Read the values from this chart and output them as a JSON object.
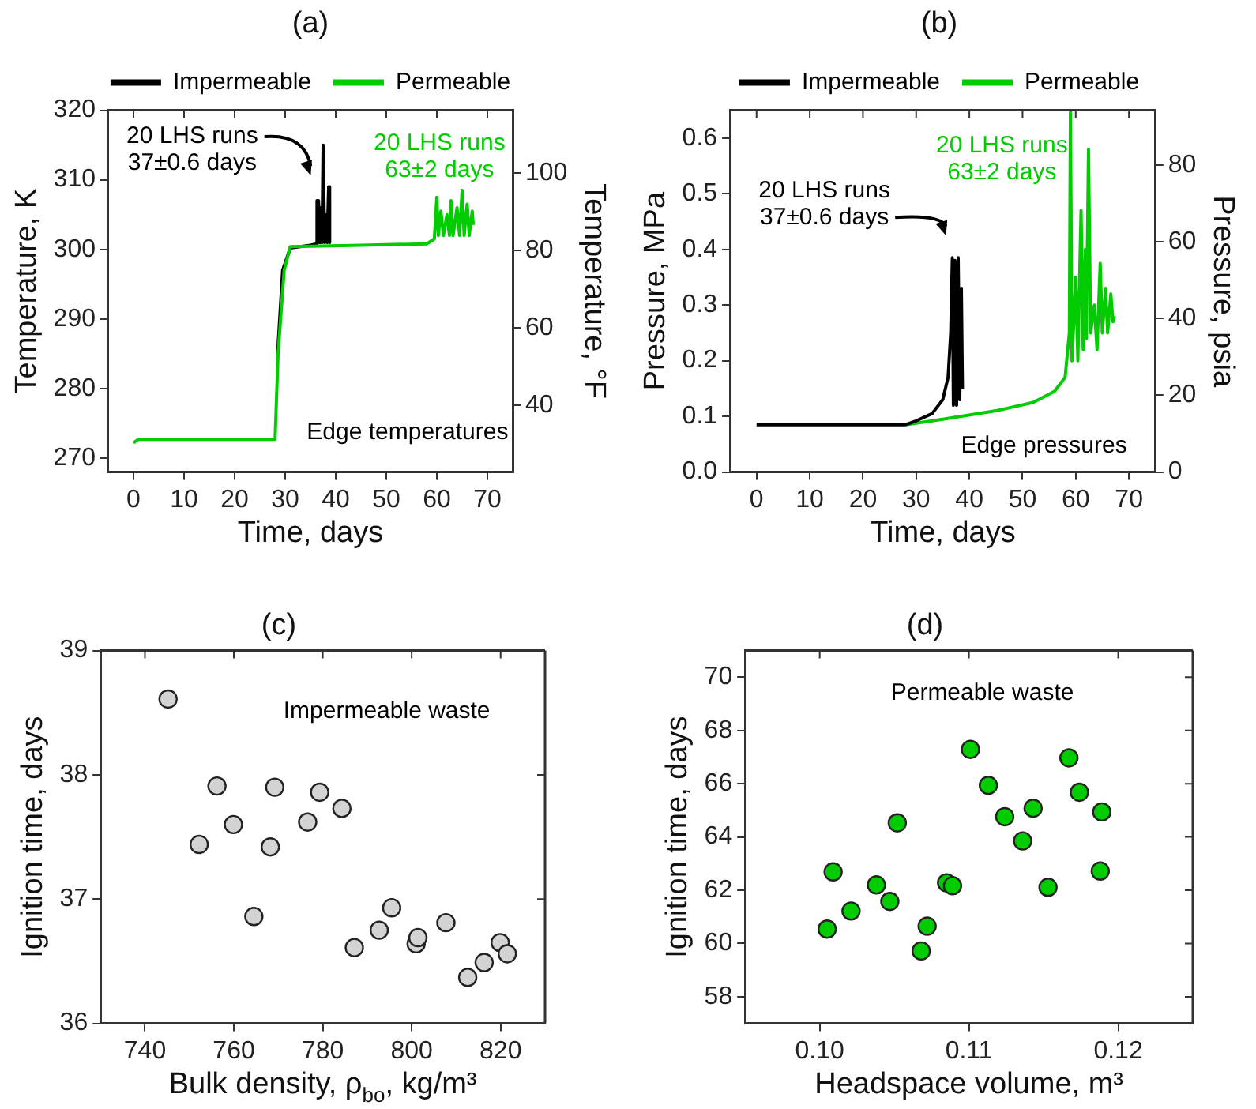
{
  "chart_data": [
    {
      "type": "line",
      "title": "(a)",
      "xlabel": "Time, days",
      "ylabel": "Temperature, K",
      "y2label": "Temperature, °F",
      "legend": "top",
      "marker": "none",
      "xlim": [
        -5,
        75
      ],
      "xticks": [
        0,
        10,
        20,
        30,
        40,
        50,
        60,
        70
      ],
      "ylim": [
        268,
        320
      ],
      "yticks": [
        270,
        280,
        290,
        300,
        310,
        320
      ],
      "y2lim": [
        22.7,
        116.3
      ],
      "y2ticks": [
        40,
        60,
        80,
        100
      ],
      "series": [
        {
          "name": "Impermeable",
          "color": "#000000",
          "x": [
            28.5,
            29.5,
            31,
            35,
            36.2,
            36.3,
            36.6,
            36.8,
            37,
            37.3,
            37.5,
            37.8,
            38,
            38.3,
            38.6,
            38.8
          ],
          "values": [
            285,
            297,
            300.2,
            300.6,
            300.8,
            307,
            307,
            301,
            306,
            301,
            315,
            301,
            305,
            301,
            309,
            301
          ]
        },
        {
          "name": "Permeable",
          "color": "#00cc00",
          "x": [
            0,
            1,
            28,
            28.6,
            29.8,
            31,
            45,
            58,
            59.5,
            60,
            60.3,
            60.8,
            61.3,
            62,
            62.5,
            62.8,
            63.2,
            64,
            64.5,
            65,
            65.4,
            66,
            66.4,
            67,
            67.2
          ],
          "values": [
            272.2,
            272.7,
            272.7,
            285,
            297,
            300.4,
            300.6,
            300.8,
            301.5,
            307.5,
            302,
            305.5,
            302,
            305,
            302,
            307,
            302,
            306,
            302,
            308.5,
            302,
            306.5,
            302,
            305.5,
            303.5
          ]
        }
      ],
      "annotations": [
        {
          "text": "20 LHS runs\n37±0.6 days",
          "x": 36.3,
          "y": 307
        },
        "20 LHS runs\n63±2 days",
        "Edge temperatures"
      ]
    },
    {
      "type": "line",
      "title": "(b)",
      "xlabel": "Time, days",
      "ylabel": "Pressure, MPa",
      "y2label": "Pressure, psia",
      "legend": "top",
      "marker": "none",
      "xlim": [
        -5,
        75
      ],
      "xticks": [
        0,
        10,
        20,
        30,
        40,
        50,
        60,
        70
      ],
      "ylim": [
        0,
        0.65
      ],
      "yticks": [
        {
          "value": 0,
          "label": "0.0"
        },
        0.1,
        0.2,
        0.3,
        0.4,
        0.5,
        0.6
      ],
      "y2lim": [
        0,
        94.3
      ],
      "y2ticks": [
        0,
        20,
        40,
        60,
        80
      ],
      "series": [
        {
          "name": "Impermeable",
          "color": "#000000",
          "x": [
            0,
            28,
            30,
            33,
            35,
            36,
            36.5,
            36.8,
            37,
            37.3,
            37.6,
            37.9,
            38.2,
            38.5,
            38.7
          ],
          "values": [
            0.085,
            0.085,
            0.092,
            0.105,
            0.13,
            0.17,
            0.25,
            0.385,
            0.12,
            0.38,
            0.12,
            0.385,
            0.13,
            0.33,
            0.15
          ]
        },
        {
          "name": "Permeable",
          "color": "#00cc00",
          "x": [
            28,
            35,
            45,
            52,
            56,
            58,
            58.8,
            59,
            59.3,
            60,
            60.4,
            61,
            61.4,
            61.8,
            62,
            62.4,
            62.8,
            63.5,
            64,
            64.6,
            65,
            65.6,
            66,
            66.6,
            67,
            67.3
          ],
          "values": [
            0.085,
            0.095,
            0.11,
            0.125,
            0.145,
            0.17,
            0.25,
            0.65,
            0.2,
            0.35,
            0.2,
            0.47,
            0.22,
            0.4,
            0.24,
            0.58,
            0.25,
            0.3,
            0.22,
            0.375,
            0.25,
            0.33,
            0.25,
            0.32,
            0.27,
            0.28
          ]
        }
      ],
      "annotations": [
        {
          "text": "20 LHS runs\n37±0.6 days",
          "x": 36.8,
          "y": 0.385
        },
        "20 LHS runs\n63±2 days",
        "Edge pressures"
      ]
    },
    {
      "type": "scatter",
      "title": "(c)",
      "xlabel": "Bulk density, ρ$_{bo}$, kg/m³",
      "ylabel": "Ignition time, days",
      "marker": "circle",
      "xlim": [
        730,
        830
      ],
      "xticks": [
        740,
        760,
        780,
        800,
        820
      ],
      "ylim": [
        36,
        39
      ],
      "yticks": [
        36,
        37,
        38,
        39
      ],
      "series": [
        {
          "color": "#d3d3d3",
          "x": [
            745.2,
            756.2,
            752.2,
            759.9,
            769.2,
            768.2,
            764.5,
            779.3,
            776.6,
            784.3,
            787.1,
            792.7,
            795.5,
            801.0,
            801.4,
            807.7,
            812.6,
            816.3,
            819.9,
            821.5
          ],
          "values": [
            38.61,
            37.91,
            37.44,
            37.6,
            37.9,
            37.42,
            36.86,
            37.86,
            37.62,
            37.73,
            36.61,
            36.75,
            36.93,
            36.64,
            36.69,
            36.81,
            36.37,
            36.49,
            36.65,
            36.56
          ]
        }
      ],
      "annotations": [
        "Impermeable waste"
      ]
    },
    {
      "type": "scatter",
      "title": "(d)",
      "xlabel": "Headspace volume, m³",
      "ylabel": "Ignition time, days",
      "marker": "circle",
      "xlim": [
        0.095,
        0.125
      ],
      "xticks": [
        {
          "value": 0.1,
          "label": "0.10"
        },
        0.11,
        {
          "value": 0.12,
          "label": "0.12"
        }
      ],
      "ylim": [
        57,
        71
      ],
      "yticks": [
        58,
        60,
        62,
        64,
        66,
        68,
        70
      ],
      "series": [
        {
          "color": "#00cc00",
          "x": [
            0.1005,
            0.1009,
            0.1021,
            0.1038,
            0.1047,
            0.1052,
            0.1068,
            0.1072,
            0.1085,
            0.1089,
            0.1101,
            0.1113,
            0.1124,
            0.1136,
            0.1143,
            0.1153,
            0.1167,
            0.1174,
            0.1189,
            0.1188
          ],
          "values": [
            60.54,
            62.69,
            61.22,
            62.2,
            61.58,
            64.53,
            59.72,
            60.65,
            62.28,
            62.17,
            67.29,
            65.94,
            64.76,
            63.85,
            65.08,
            62.11,
            66.97,
            65.68,
            64.94,
            62.72
          ]
        }
      ],
      "annotations": [
        "Permeable waste"
      ]
    }
  ]
}
